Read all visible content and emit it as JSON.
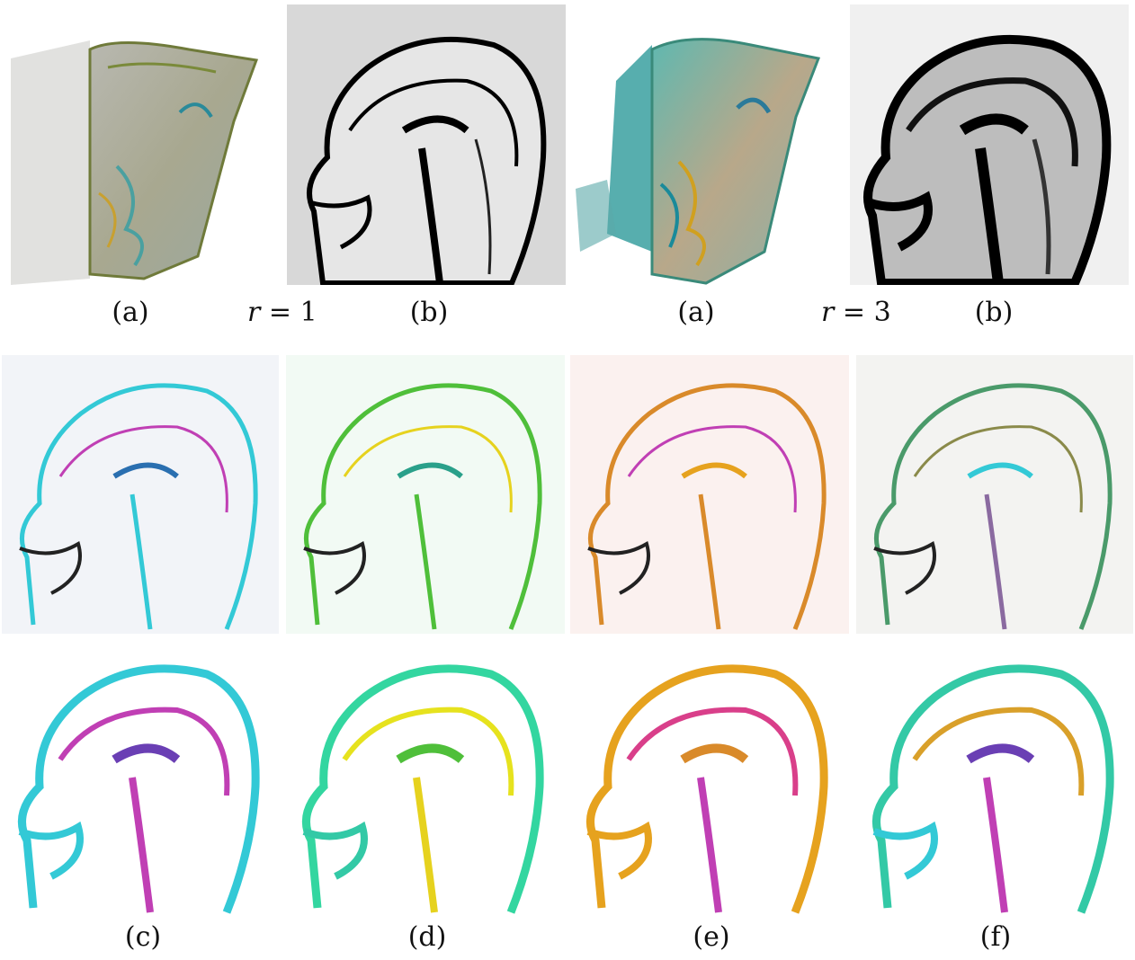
{
  "captions": {
    "top_left_a": "(a)",
    "top_left_b": "(b)",
    "top_right_a": "(a)",
    "top_right_b": "(b)",
    "bottom_c": "(c)",
    "bottom_d": "(d)",
    "bottom_e": "(e)",
    "bottom_f": "(f)"
  },
  "radius_labels": {
    "left": {
      "var": "r",
      "value": "= 1"
    },
    "right": {
      "var": "r",
      "value": "= 3"
    }
  },
  "colors": {
    "background": "#ffffff",
    "cyan": "#33c9d6",
    "magenta": "#c03fb4",
    "green": "#4fbf3a",
    "yellow": "#e6d21e",
    "orange": "#d98a2a",
    "olive": "#8a8a4a",
    "black": "#000000"
  },
  "panels": {
    "volume_r1": "volume-rendering",
    "slice_r1": "grayscale-slice",
    "volume_r3": "volume-rendering",
    "slice_r3": "grayscale-slice",
    "c_top": "cyan-magenta",
    "d_top": "green-yellow",
    "e_top": "orange-magenta",
    "f_top": "mixed-color",
    "c_bottom": "cyan-magenta",
    "d_bottom": "green-yellow",
    "e_bottom": "orange-magenta",
    "f_bottom": "mixed-color"
  }
}
